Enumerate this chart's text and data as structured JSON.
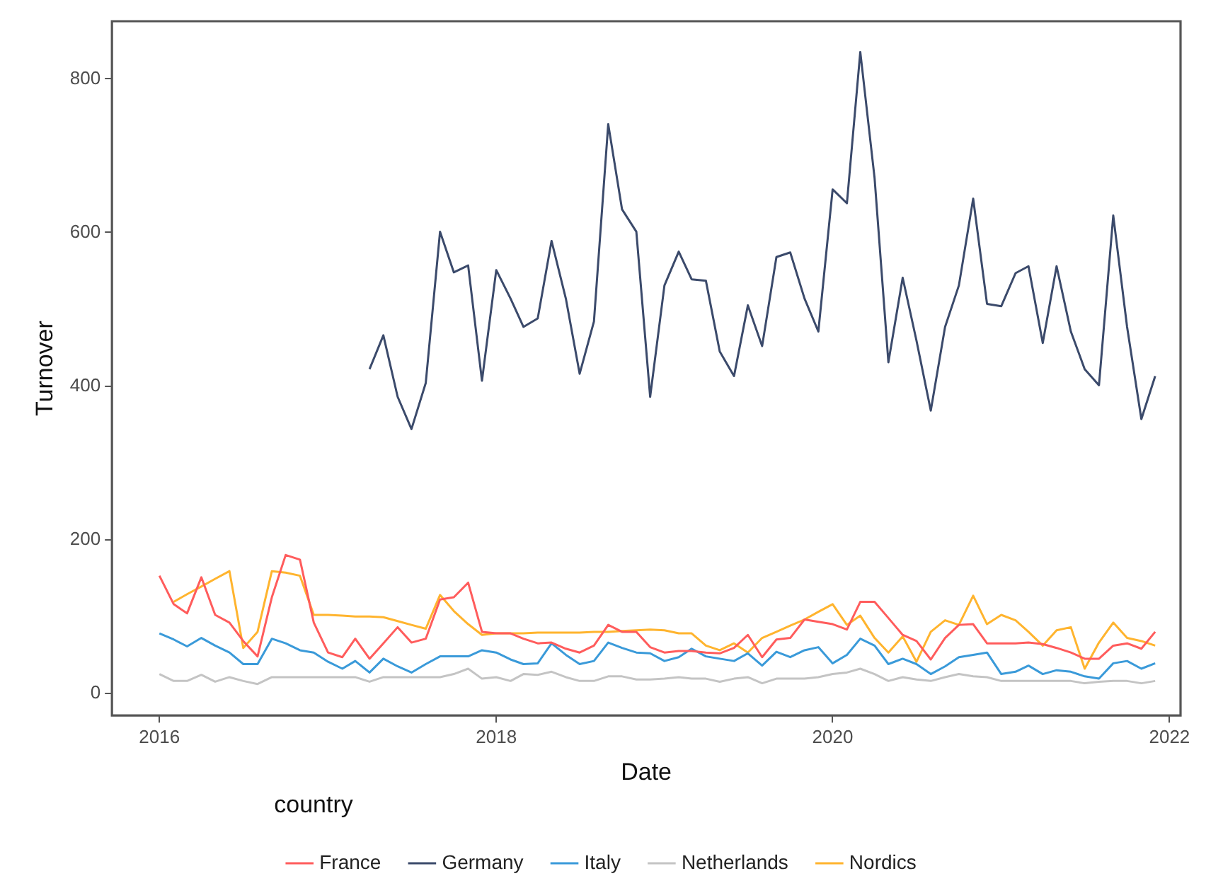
{
  "chart_data": {
    "type": "line",
    "xlabel": "Date",
    "ylabel": "Turnover",
    "legend_title": "country",
    "legend": "bottom",
    "x": [
      "2016-01",
      "2016-02",
      "2016-03",
      "2016-04",
      "2016-05",
      "2016-06",
      "2016-07",
      "2016-08",
      "2016-09",
      "2016-10",
      "2016-11",
      "2016-12",
      "2017-01",
      "2017-02",
      "2017-03",
      "2017-04",
      "2017-05",
      "2017-06",
      "2017-07",
      "2017-08",
      "2017-09",
      "2017-10",
      "2017-11",
      "2017-12",
      "2018-01",
      "2018-02",
      "2018-03",
      "2018-04",
      "2018-05",
      "2018-06",
      "2018-07",
      "2018-08",
      "2018-09",
      "2018-10",
      "2018-11",
      "2018-12",
      "2019-01",
      "2019-02",
      "2019-03",
      "2019-04",
      "2019-05",
      "2019-06",
      "2019-07",
      "2019-08",
      "2019-09",
      "2019-10",
      "2019-11",
      "2019-12",
      "2020-01",
      "2020-02",
      "2020-03",
      "2020-04",
      "2020-05",
      "2020-06",
      "2020-07",
      "2020-08",
      "2020-09",
      "2020-10",
      "2020-11",
      "2020-12",
      "2021-01",
      "2021-02",
      "2021-03",
      "2021-04",
      "2021-05",
      "2021-06",
      "2021-07",
      "2021-08",
      "2021-09",
      "2021-10",
      "2021-11",
      "2021-12"
    ],
    "xlim": [
      "2015-09-20",
      "2022-01-25"
    ],
    "xticks": [
      "2016",
      "2018",
      "2020",
      "2022"
    ],
    "ylim": [
      -29,
      875
    ],
    "yticks": [
      0,
      200,
      400,
      600,
      800
    ],
    "series": [
      {
        "name": "France",
        "color": "#ff5c5c",
        "values": [
          153,
          116,
          104,
          151,
          102,
          92,
          68,
          48,
          125,
          180,
          174,
          92,
          53,
          47,
          71,
          45,
          65,
          86,
          66,
          71,
          122,
          125,
          144,
          80,
          78,
          78,
          71,
          65,
          66,
          58,
          53,
          62,
          89,
          80,
          80,
          60,
          53,
          55,
          55,
          53,
          52,
          59,
          76,
          47,
          70,
          72,
          96,
          93,
          90,
          83,
          119,
          119,
          98,
          76,
          68,
          44,
          72,
          89,
          90,
          65,
          65,
          65,
          66,
          64,
          59,
          53,
          45,
          45,
          62,
          65,
          58,
          80
        ]
      },
      {
        "name": "Germany",
        "color": "#3b4a6b",
        "x": [
          "2017-04",
          "2017-05",
          "2017-06",
          "2017-07",
          "2017-08",
          "2017-09",
          "2017-10",
          "2017-11",
          "2017-12",
          "2018-01",
          "2018-02",
          "2018-03",
          "2018-04",
          "2018-05",
          "2018-06",
          "2018-07",
          "2018-08",
          "2018-09",
          "2018-10",
          "2018-11",
          "2018-12",
          "2019-01",
          "2019-02",
          "2019-03",
          "2019-04",
          "2019-05",
          "2019-06",
          "2019-07",
          "2019-08",
          "2019-09",
          "2019-10",
          "2019-11",
          "2019-12",
          "2020-01",
          "2020-02",
          "2020-03",
          "2020-04",
          "2020-05",
          "2020-06",
          "2020-07",
          "2020-08",
          "2020-09",
          "2020-10",
          "2020-11",
          "2020-12",
          "2021-01",
          "2021-02",
          "2021-03",
          "2021-04",
          "2021-05",
          "2021-06",
          "2021-07",
          "2021-08",
          "2021-09",
          "2021-10",
          "2021-11",
          "2021-12"
        ],
        "values": [
          422,
          466,
          386,
          344,
          404,
          601,
          548,
          557,
          407,
          551,
          514,
          477,
          488,
          589,
          514,
          416,
          484,
          741,
          630,
          601,
          386,
          531,
          575,
          539,
          537,
          445,
          413,
          505,
          452,
          568,
          574,
          514,
          471,
          656,
          638,
          835,
          671,
          431,
          541,
          459,
          368,
          477,
          531,
          644,
          507,
          504,
          547,
          556,
          456,
          556,
          471,
          422,
          401,
          622,
          477,
          357,
          413
        ]
      },
      {
        "name": "Italy",
        "color": "#3a9ad9",
        "values": [
          78,
          70,
          61,
          72,
          62,
          53,
          38,
          38,
          71,
          65,
          56,
          53,
          41,
          32,
          42,
          27,
          45,
          35,
          27,
          38,
          48,
          48,
          48,
          56,
          53,
          44,
          38,
          39,
          65,
          50,
          38,
          42,
          66,
          59,
          53,
          52,
          42,
          47,
          58,
          48,
          45,
          42,
          52,
          36,
          54,
          47,
          56,
          60,
          39,
          50,
          71,
          62,
          38,
          45,
          38,
          25,
          35,
          47,
          50,
          53,
          25,
          28,
          36,
          25,
          30,
          28,
          22,
          19,
          39,
          42,
          32,
          39
        ]
      },
      {
        "name": "Netherlands",
        "color": "#c4c4c4",
        "values": [
          25,
          16,
          16,
          24,
          15,
          21,
          16,
          12,
          21,
          21,
          21,
          21,
          21,
          21,
          21,
          15,
          21,
          21,
          21,
          21,
          21,
          25,
          32,
          19,
          21,
          16,
          25,
          24,
          28,
          21,
          16,
          16,
          22,
          22,
          18,
          18,
          19,
          21,
          19,
          19,
          15,
          19,
          21,
          13,
          19,
          19,
          19,
          21,
          25,
          27,
          32,
          25,
          16,
          21,
          18,
          16,
          21,
          25,
          22,
          21,
          16,
          16,
          16,
          16,
          16,
          16,
          13,
          15,
          16,
          16,
          13,
          16
        ]
      },
      {
        "name": "Nordics",
        "color": "#ffb42e",
        "values": [
          null,
          119,
          129,
          139,
          149,
          159,
          59,
          80,
          159,
          157,
          153,
          102,
          102,
          101,
          100,
          100,
          99,
          94,
          89,
          84,
          128,
          107,
          90,
          76,
          78,
          78,
          78,
          79,
          79,
          79,
          79,
          80,
          80,
          81,
          82,
          83,
          82,
          78,
          78,
          62,
          56,
          65,
          53,
          72,
          80,
          88,
          96,
          106,
          116,
          89,
          101,
          72,
          53,
          74,
          41,
          80,
          95,
          89,
          127,
          90,
          102,
          95,
          80,
          62,
          82,
          86,
          32,
          66,
          92,
          72,
          68,
          62
        ]
      }
    ]
  }
}
